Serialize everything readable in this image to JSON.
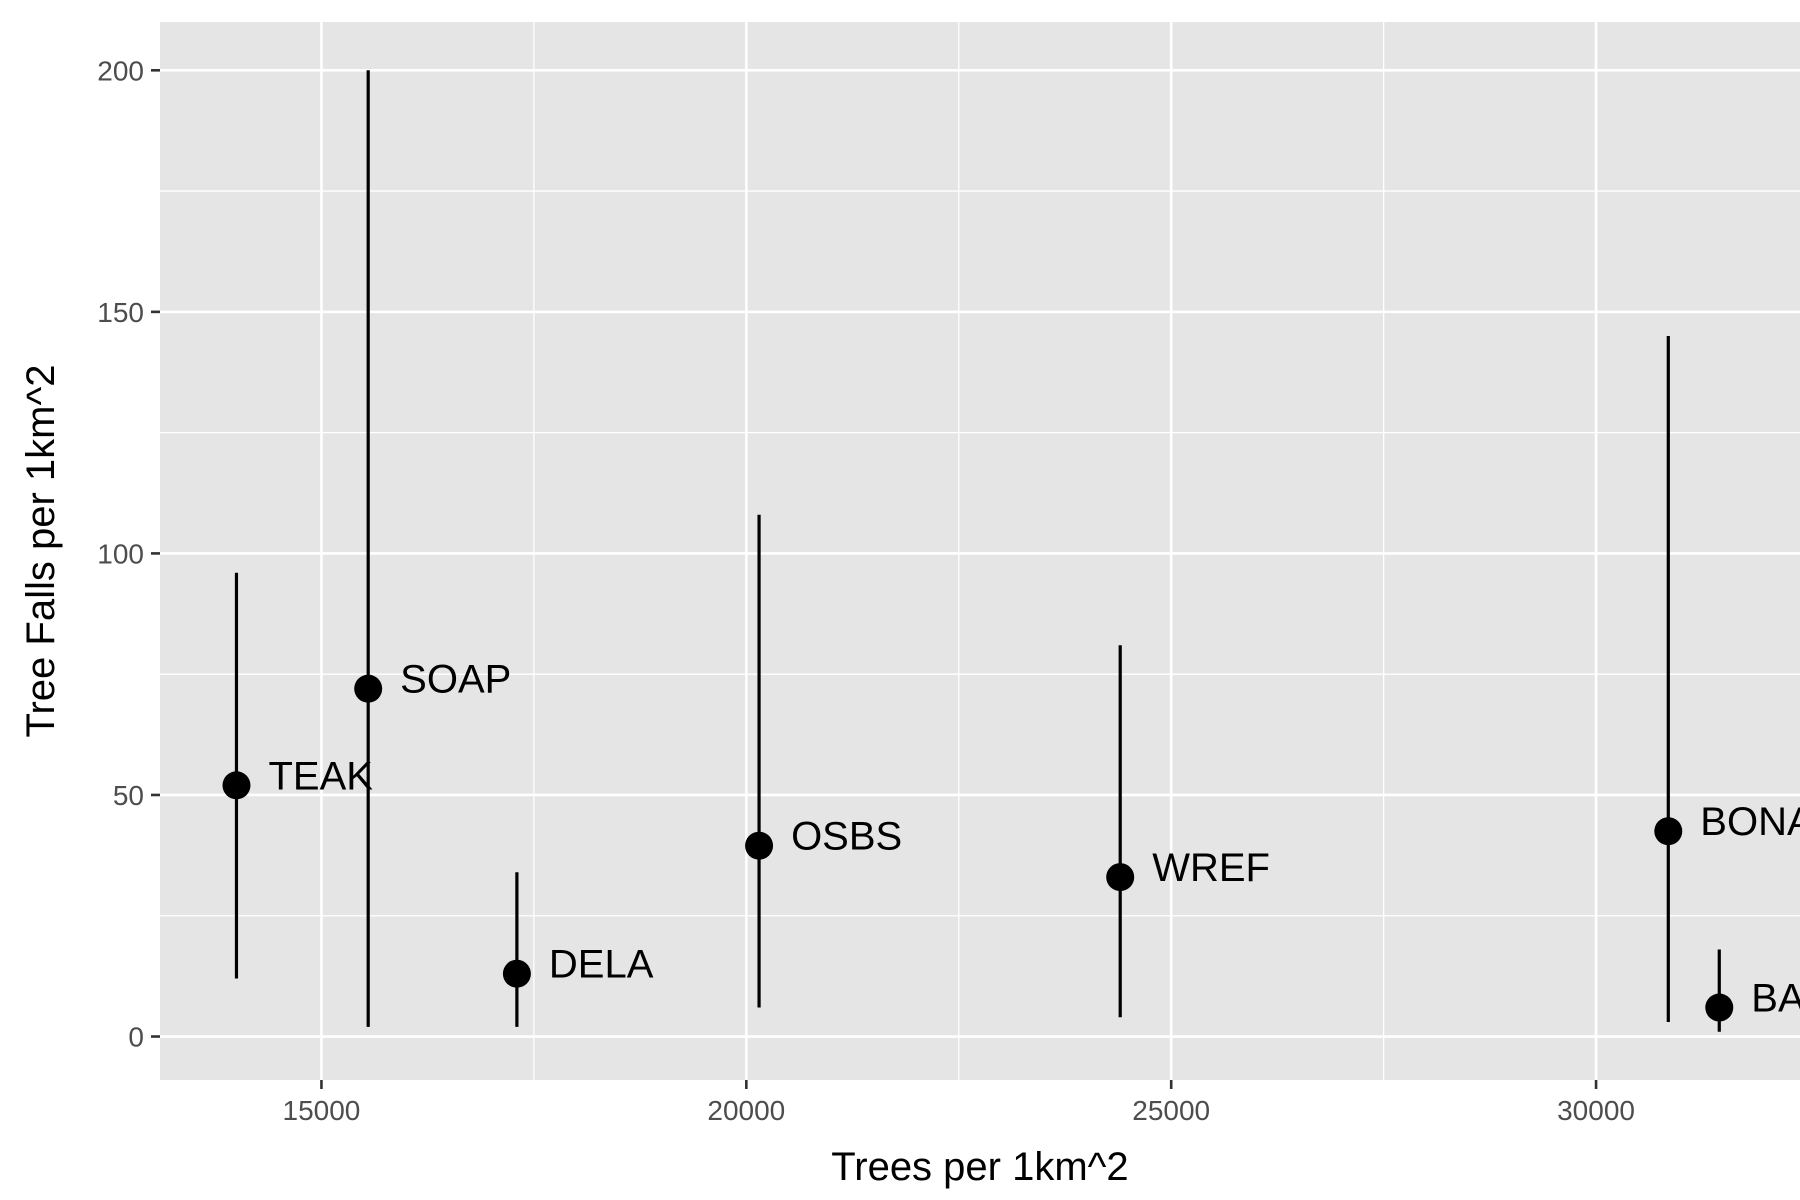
{
  "chart_data": {
    "type": "scatter",
    "title": "",
    "xlabel": "Trees per 1km^2",
    "ylabel": "Tree Falls per 1km^2",
    "xlim": [
      13100,
      32400
    ],
    "ylim": [
      -9,
      210
    ],
    "x_ticks": [
      15000,
      20000,
      25000,
      30000
    ],
    "y_ticks": [
      0,
      50,
      100,
      150,
      200
    ],
    "grid": true,
    "legend": "none",
    "points": [
      {
        "label": "TEAK",
        "x": 14000,
        "y": 52,
        "ymin": 12,
        "ymax": 96
      },
      {
        "label": "SOAP",
        "x": 15550,
        "y": 72,
        "ymin": 2,
        "ymax": 200
      },
      {
        "label": "DELA",
        "x": 17300,
        "y": 13,
        "ymin": 2,
        "ymax": 34
      },
      {
        "label": "OSBS",
        "x": 20150,
        "y": 39.5,
        "ymin": 6,
        "ymax": 108
      },
      {
        "label": "WREF",
        "x": 24400,
        "y": 33,
        "ymin": 4,
        "ymax": 81
      },
      {
        "label": "BONA",
        "x": 30850,
        "y": 42.5,
        "ymin": 3,
        "ymax": 145
      },
      {
        "label": "BART",
        "x": 31450,
        "y": 6,
        "ymin": 1,
        "ymax": 18
      }
    ]
  }
}
